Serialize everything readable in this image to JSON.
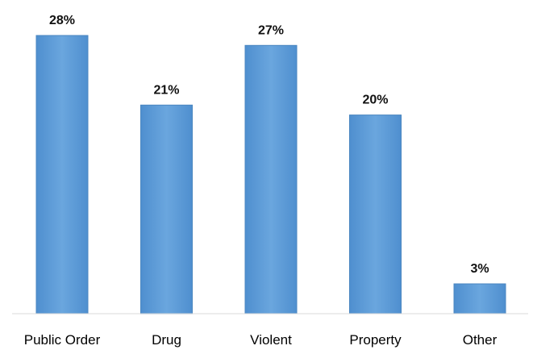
{
  "chart_data": {
    "type": "bar",
    "categories": [
      "Public Order",
      "Drug",
      "Violent",
      "Property",
      "Other"
    ],
    "values": [
      28,
      21,
      27,
      20,
      3
    ],
    "value_labels": [
      "28%",
      "21%",
      "27%",
      "20%",
      "3%"
    ],
    "unit": "%",
    "ylim": [
      0,
      28
    ],
    "grid": false,
    "legend": "none",
    "bar_color": "#5b9bd5",
    "bar_edge_color": "#4a86c0"
  }
}
